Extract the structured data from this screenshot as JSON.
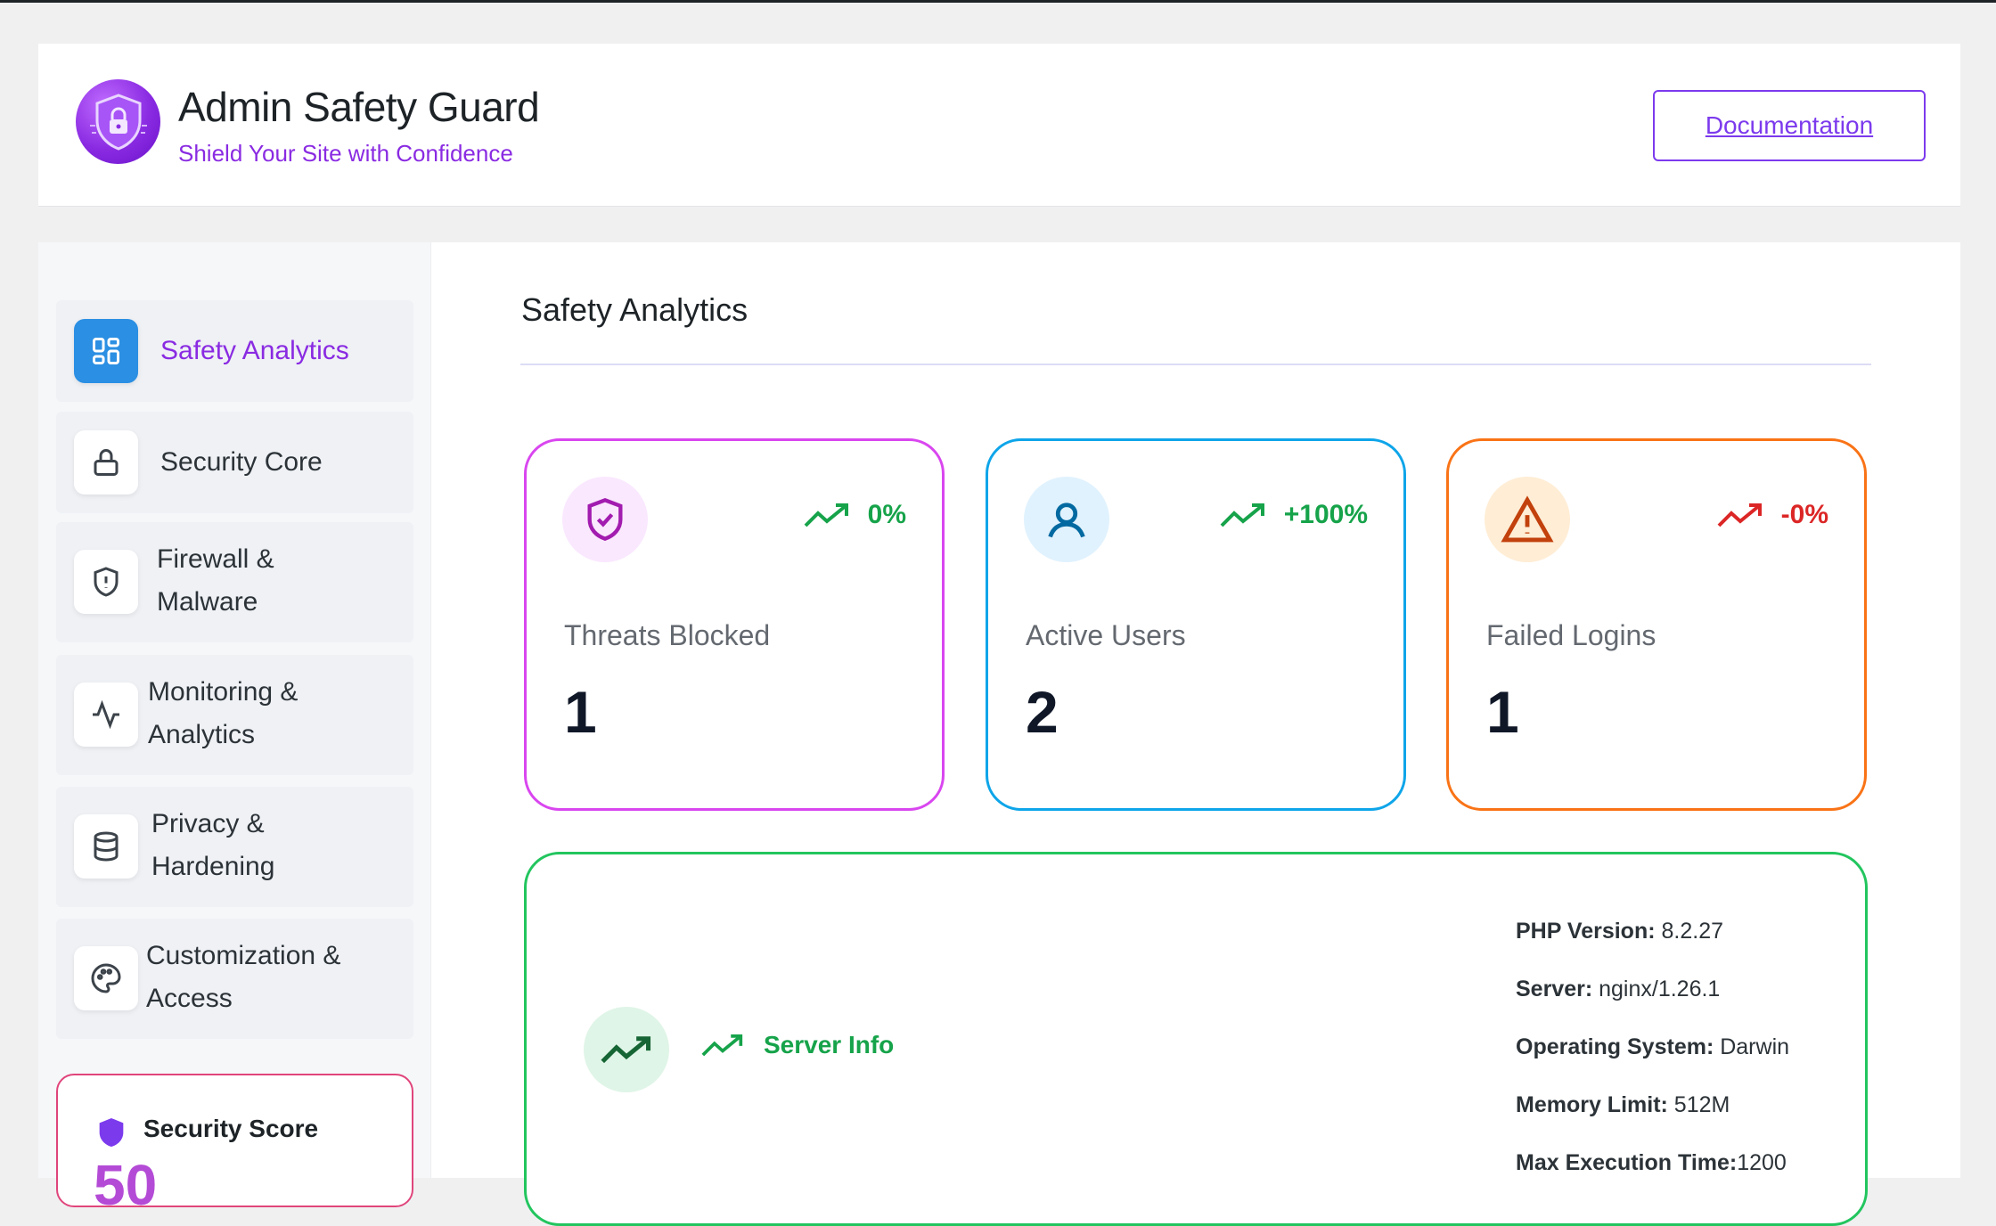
{
  "header": {
    "title": "Admin Safety Guard",
    "subtitle": "Shield Your Site with Confidence",
    "doc_button": "Documentation"
  },
  "sidebar": {
    "items": [
      {
        "label": "Safety Analytics",
        "icon": "dashboard-grid-icon",
        "active": true
      },
      {
        "label": "Security Core",
        "icon": "lock-icon"
      },
      {
        "label_line1": "Firewall &",
        "label_line2": "Malware",
        "icon": "shield-alert-icon"
      },
      {
        "label_line1": "Monitoring &",
        "label_line2": "Analytics",
        "icon": "activity-icon"
      },
      {
        "label_line1": "Privacy &",
        "label_line2": "Hardening",
        "icon": "database-icon"
      },
      {
        "label_line1": "Customization &",
        "label_line2": "Access",
        "icon": "palette-icon"
      }
    ],
    "score": {
      "label": "Security Score",
      "value": "50"
    }
  },
  "main": {
    "title": "Safety Analytics",
    "stats": [
      {
        "label": "Threats Blocked",
        "value": "1",
        "trend": "0%",
        "icon": "shield-check-icon",
        "accent": "#d946ef",
        "trend_color": "#16a34a"
      },
      {
        "label": "Active Users",
        "value": "2",
        "trend": "+100%",
        "icon": "user-icon",
        "accent": "#0ea5e9",
        "trend_color": "#16a34a"
      },
      {
        "label": "Failed Logins",
        "value": "1",
        "trend": "-0%",
        "icon": "warning-triangle-icon",
        "accent": "#f97316",
        "trend_color": "#dc2626"
      }
    ],
    "server": {
      "title": "Server Info",
      "rows": [
        {
          "key": "PHP Version:",
          "value": " 8.2.27"
        },
        {
          "key": "Server:",
          "value": " nginx/1.26.1"
        },
        {
          "key": "Operating System:",
          "value": " Darwin"
        },
        {
          "key": "Memory Limit:",
          "value": " 512M"
        },
        {
          "key": "Max Execution Time:",
          "value": "1200"
        }
      ]
    }
  }
}
